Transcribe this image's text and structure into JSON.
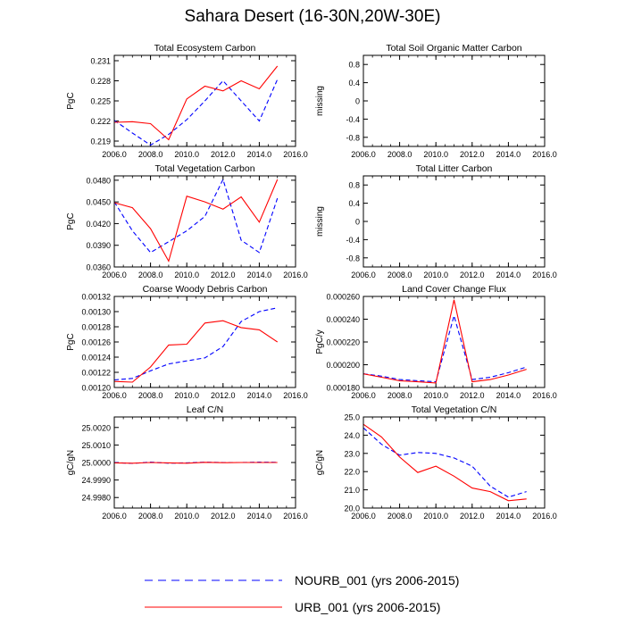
{
  "main_title": "Sahara Desert (16-30N,20W-30E)",
  "colors": {
    "nourb": "#0000ff",
    "urb": "#ff0000",
    "axis": "#000000"
  },
  "legend": {
    "nourb_label": "NOURB_001 (yrs 2006-2015)",
    "urb_label": "URB_001 (yrs 2006-2015)"
  },
  "chart_data": [
    {
      "type": "line",
      "title": "Total Ecosystem Carbon",
      "ylabel": "PgC",
      "xlim": [
        2006,
        2016
      ],
      "ylim": [
        0.2182,
        0.2318
      ],
      "x_ticks": [
        "2006.0",
        "2008.0",
        "2010.0",
        "2012.0",
        "2014.0",
        "2016.0"
      ],
      "y_ticks": [
        0.219,
        0.222,
        0.225,
        0.228,
        0.231
      ],
      "y_tick_labels": [
        "0.219",
        "0.222",
        "0.225",
        "0.228",
        "0.231"
      ],
      "x": [
        2006,
        2007,
        2008,
        2009,
        2010,
        2011,
        2012,
        2013,
        2014,
        2015
      ],
      "series": [
        {
          "name": "NOURB_001",
          "style": "dashed",
          "values": [
            0.2221,
            0.2202,
            0.2184,
            0.22,
            0.2222,
            0.225,
            0.228,
            0.225,
            0.222,
            0.2282
          ]
        },
        {
          "name": "URB_001",
          "style": "solid",
          "values": [
            0.2218,
            0.2219,
            0.2216,
            0.2192,
            0.2253,
            0.2272,
            0.2265,
            0.228,
            0.2268,
            0.2302
          ]
        }
      ]
    },
    {
      "type": "line",
      "title": "Total Soil Organic Matter Carbon",
      "ylabel": "missing",
      "xlim": [
        2006,
        2016
      ],
      "ylim": [
        -1,
        1
      ],
      "x_ticks": [
        "2006.0",
        "2008.0",
        "2010.0",
        "2012.0",
        "2014.0",
        "2016.0"
      ],
      "y_ticks": [
        -0.8,
        -0.4,
        0,
        0.4,
        0.8
      ],
      "y_tick_labels": [
        "-0.8",
        "-0.4",
        "0",
        "0.4",
        "0.8"
      ],
      "x": [],
      "series": []
    },
    {
      "type": "line",
      "title": "Total Vegetation Carbon",
      "ylabel": "PgC",
      "xlim": [
        2006,
        2016
      ],
      "ylim": [
        0.036,
        0.0486
      ],
      "x_ticks": [
        "2006.0",
        "2008.0",
        "2010.0",
        "2012.0",
        "2014.0",
        "2016.0"
      ],
      "y_ticks": [
        0.036,
        0.039,
        0.042,
        0.045,
        0.048
      ],
      "y_tick_labels": [
        "0.0360",
        "0.0390",
        "0.0420",
        "0.0450",
        "0.0480"
      ],
      "x": [
        2006,
        2007,
        2008,
        2009,
        2010,
        2011,
        2012,
        2013,
        2014,
        2015
      ],
      "series": [
        {
          "name": "NOURB_001",
          "style": "dashed",
          "values": [
            0.045,
            0.041,
            0.038,
            0.0395,
            0.041,
            0.043,
            0.0481,
            0.0397,
            0.038,
            0.0455
          ]
        },
        {
          "name": "URB_001",
          "style": "solid",
          "values": [
            0.0449,
            0.0442,
            0.0413,
            0.0368,
            0.0458,
            0.045,
            0.044,
            0.0457,
            0.0422,
            0.0481
          ]
        }
      ]
    },
    {
      "type": "line",
      "title": "Total Litter Carbon",
      "ylabel": "missing",
      "xlim": [
        2006,
        2016
      ],
      "ylim": [
        -1,
        1
      ],
      "x_ticks": [
        "2006.0",
        "2008.0",
        "2010.0",
        "2012.0",
        "2014.0",
        "2016.0"
      ],
      "y_ticks": [
        -0.8,
        -0.4,
        0,
        0.4,
        0.8
      ],
      "y_tick_labels": [
        "-0.8",
        "-0.4",
        "0",
        "0.4",
        "0.8"
      ],
      "x": [],
      "series": []
    },
    {
      "type": "line",
      "title": "Coarse Woody Debris Carbon",
      "ylabel": "PgC",
      "xlim": [
        2006,
        2016
      ],
      "ylim": [
        0.0012,
        0.00132
      ],
      "x_ticks": [
        "2006.0",
        "2008.0",
        "2010.0",
        "2012.0",
        "2014.0",
        "2016.0"
      ],
      "y_ticks": [
        0.0012,
        0.00122,
        0.00124,
        0.00126,
        0.00128,
        0.0013,
        0.00132
      ],
      "y_tick_labels": [
        "0.00120",
        "0.00122",
        "0.00124",
        "0.00126",
        "0.00128",
        "0.00130",
        "0.00132"
      ],
      "x": [
        2006,
        2007,
        2008,
        2009,
        2010,
        2011,
        2012,
        2013,
        2014,
        2015
      ],
      "series": [
        {
          "name": "NOURB_001",
          "style": "dashed",
          "values": [
            0.00121,
            0.001212,
            0.001222,
            0.001231,
            0.001235,
            0.001239,
            0.001254,
            0.001287,
            0.0013,
            0.001305
          ]
        },
        {
          "name": "URB_001",
          "style": "solid",
          "values": [
            0.001208,
            0.001207,
            0.001227,
            0.001256,
            0.001257,
            0.001285,
            0.001288,
            0.001279,
            0.001276,
            0.00126
          ]
        }
      ]
    },
    {
      "type": "line",
      "title": "Land Cover Change Flux",
      "ylabel": "PgC/y",
      "xlim": [
        2006,
        2016
      ],
      "ylim": [
        0.00018,
        0.00026
      ],
      "x_ticks": [
        "2006.0",
        "2008.0",
        "2010.0",
        "2012.0",
        "2014.0",
        "2016.0"
      ],
      "y_ticks": [
        0.00018,
        0.0002,
        0.00022,
        0.00024,
        0.00026
      ],
      "y_tick_labels": [
        "0.000180",
        "0.000200",
        "0.000220",
        "0.000240",
        "0.000260"
      ],
      "x": [
        2006,
        2007,
        2008,
        2009,
        2010,
        2011,
        2012,
        2013,
        2014,
        2015
      ],
      "series": [
        {
          "name": "NOURB_001",
          "style": "dashed",
          "values": [
            0.000192,
            0.00019,
            0.000187,
            0.000186,
            0.000185,
            0.000243,
            0.000187,
            0.000189,
            0.000193,
            0.000198
          ]
        },
        {
          "name": "URB_001",
          "style": "solid",
          "values": [
            0.000192,
            0.000189,
            0.000186,
            0.000185,
            0.000184,
            0.000257,
            0.000185,
            0.000187,
            0.000191,
            0.000196
          ]
        }
      ]
    },
    {
      "type": "line",
      "title": "Leaf C/N",
      "ylabel": "gC/gN",
      "xlim": [
        2006,
        2016
      ],
      "ylim": [
        24.9974,
        25.0026
      ],
      "x_ticks": [
        "2006.0",
        "2008.0",
        "2010.0",
        "2012.0",
        "2014.0",
        "2016.0"
      ],
      "y_ticks": [
        24.998,
        24.999,
        25.0,
        25.001,
        25.002
      ],
      "y_tick_labels": [
        "24.9980",
        "24.9990",
        "25.0000",
        "25.0010",
        "25.0020"
      ],
      "x": [
        2006,
        2007,
        2008,
        2009,
        2010,
        2011,
        2012,
        2013,
        2014,
        2015
      ],
      "series": [
        {
          "name": "NOURB_001",
          "style": "dashed",
          "values": [
            25.0,
            24.99995,
            25.00002,
            24.99996,
            24.99998,
            25.00002,
            25.0,
            25.0,
            25.00002,
            25.00001
          ]
        },
        {
          "name": "URB_001",
          "style": "solid",
          "values": [
            24.99998,
            24.99996,
            25.0,
            24.99998,
            24.99996,
            25.00001,
            24.99999,
            25.0,
            25.0,
            25.0
          ]
        }
      ]
    },
    {
      "type": "line",
      "title": "Total Vegetation C/N",
      "ylabel": "gC/gN",
      "xlim": [
        2006,
        2016
      ],
      "ylim": [
        20.0,
        25.0
      ],
      "x_ticks": [
        "2006.0",
        "2008.0",
        "2010.0",
        "2012.0",
        "2014.0",
        "2016.0"
      ],
      "y_ticks": [
        20,
        21,
        22,
        23,
        24,
        25
      ],
      "y_tick_labels": [
        "20.0",
        "21.0",
        "22.0",
        "23.0",
        "24.0",
        "25.0"
      ],
      "x": [
        2006,
        2007,
        2008,
        2009,
        2010,
        2011,
        2012,
        2013,
        2014,
        2015
      ],
      "series": [
        {
          "name": "NOURB_001",
          "style": "dashed",
          "values": [
            24.4,
            23.5,
            22.9,
            23.05,
            23.0,
            22.75,
            22.3,
            21.2,
            20.6,
            20.9
          ]
        },
        {
          "name": "URB_001",
          "style": "solid",
          "values": [
            24.6,
            23.9,
            22.8,
            21.95,
            22.3,
            21.75,
            21.1,
            20.9,
            20.4,
            20.5
          ]
        }
      ]
    }
  ]
}
